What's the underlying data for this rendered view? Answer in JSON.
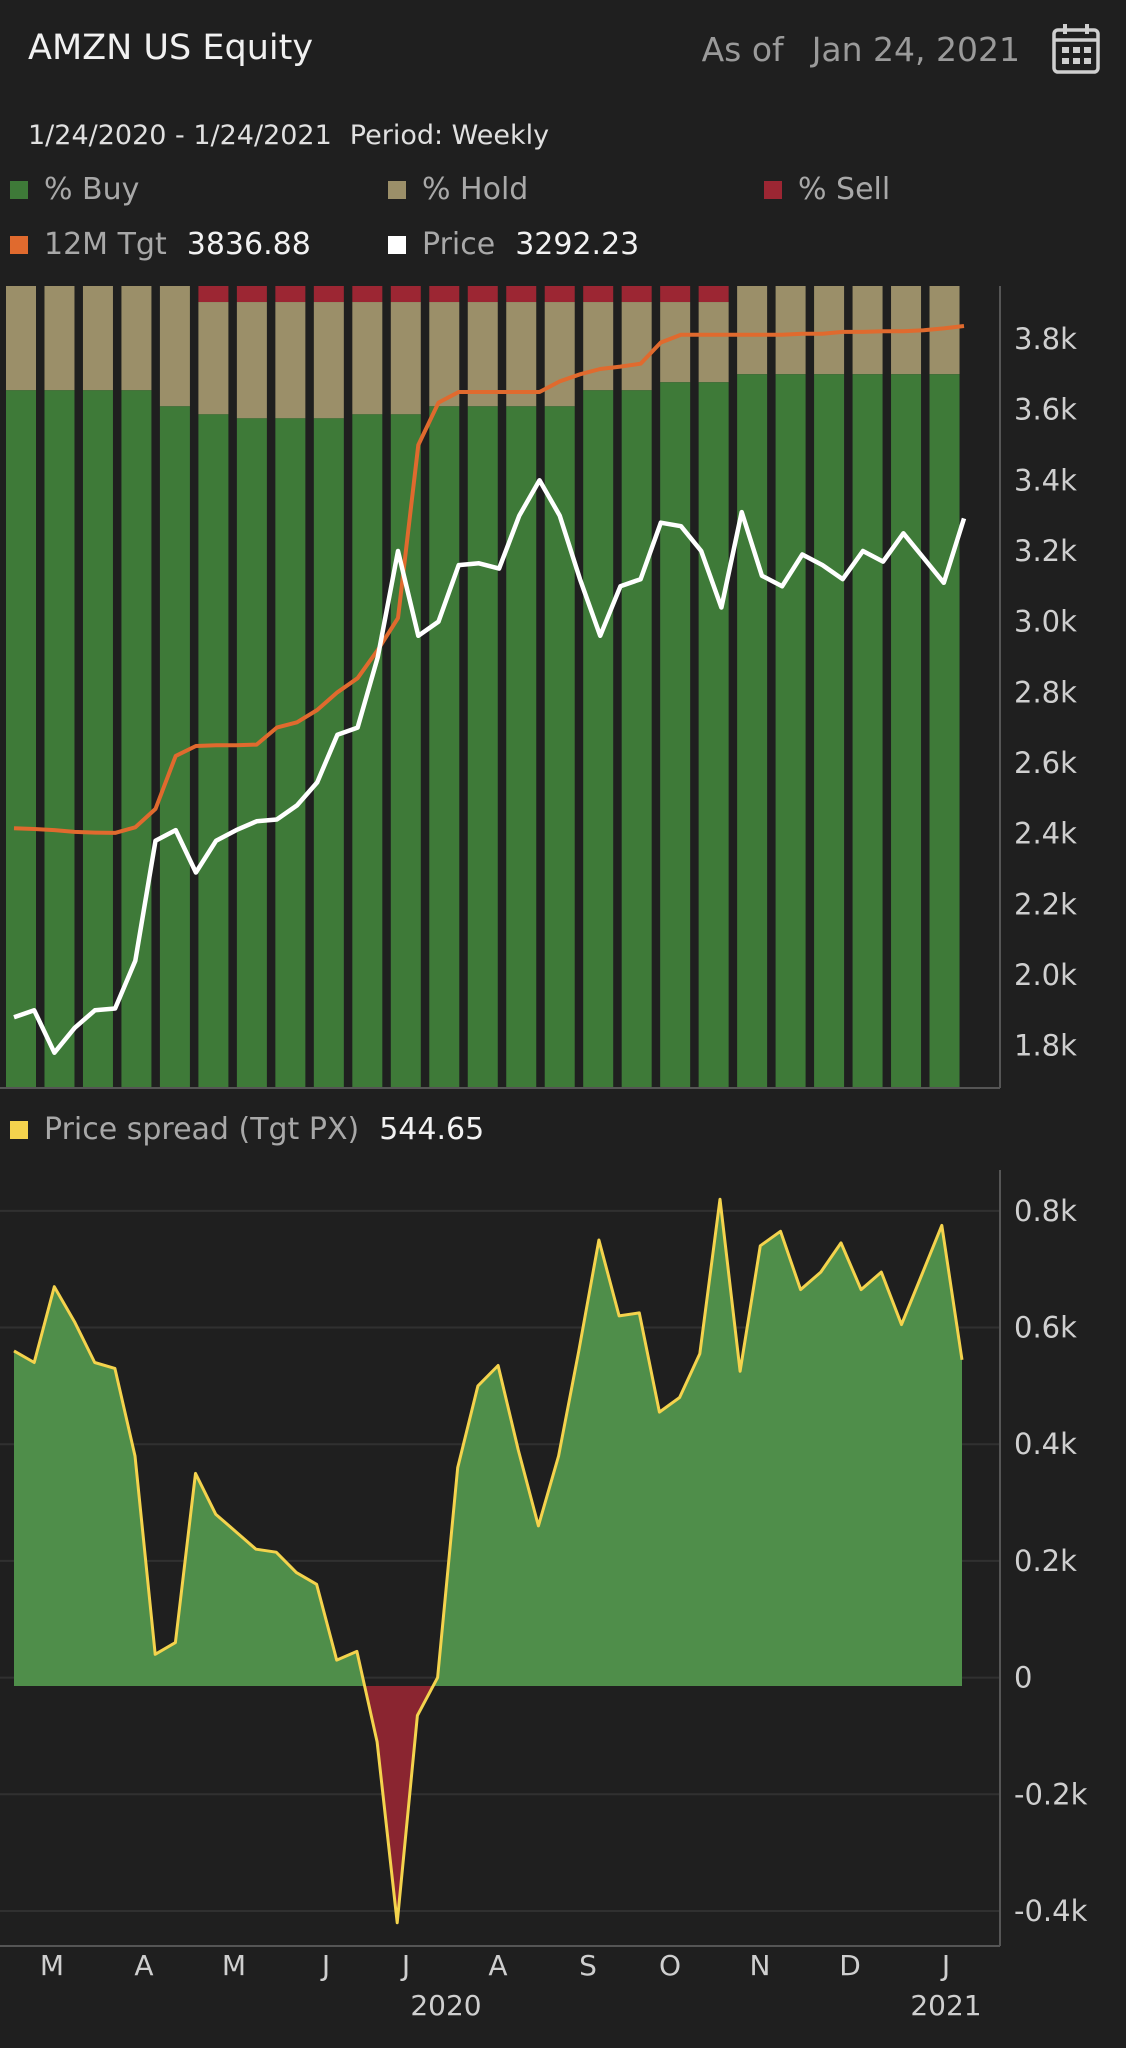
{
  "header": {
    "title": "AMZN US Equity",
    "as_of_label": "As of",
    "as_of_date": "Jan 24, 2021"
  },
  "subheader": {
    "range": "1/24/2020 - 1/24/2021",
    "period": "Period: Weekly"
  },
  "legend": {
    "buy": "% Buy",
    "hold": "% Hold",
    "sell": "% Sell",
    "tgt_label": "12M Tgt",
    "tgt_value": "3836.88",
    "price_label": "Price",
    "price_value": "3292.23",
    "spread_label": "Price spread (Tgt PX)",
    "spread_value": "544.65"
  },
  "colors": {
    "buy": "#3e7a38",
    "hold": "#9b8f69",
    "sell": "#9c2633",
    "tgt": "#e06a2e",
    "price": "#ffffff",
    "spread_pos": "#4f8e4a",
    "spread_neg": "#8a2530",
    "spread_line": "#f4d34d"
  },
  "chart_data": [
    {
      "type": "bar",
      "title": "",
      "bar_stack_percent": {
        "buy": [
          87,
          87,
          87,
          87,
          85,
          84,
          83.5,
          83.5,
          83.5,
          84,
          84,
          85,
          85,
          85,
          85,
          87,
          87,
          88,
          88,
          89,
          89,
          89,
          89,
          89,
          89
        ],
        "hold": [
          13,
          13,
          13,
          13,
          15,
          14,
          14.5,
          14.5,
          14.5,
          14,
          14,
          13,
          13,
          13,
          13,
          11,
          11,
          10,
          10,
          11,
          11,
          11,
          11,
          11,
          11
        ],
        "sell": [
          0,
          0,
          0,
          0,
          0,
          2,
          2,
          2,
          2,
          2,
          2,
          2,
          2,
          2,
          2,
          2,
          2,
          2,
          2,
          0,
          0,
          0,
          0,
          0,
          0
        ]
      },
      "series": [
        {
          "name": "12M Tgt",
          "type": "line",
          "values": [
            2415,
            2413,
            2410,
            2405,
            2403,
            2402,
            2418,
            2470,
            2620,
            2648,
            2650,
            2650,
            2652,
            2700,
            2715,
            2750,
            2800,
            2840,
            2920,
            3010,
            3500,
            3620,
            3650,
            3650,
            3650,
            3650,
            3650,
            3680,
            3700,
            3715,
            3722,
            3730,
            3790,
            3812,
            3812,
            3812,
            3812,
            3812,
            3812,
            3815,
            3815,
            3820,
            3820,
            3822,
            3822,
            3825,
            3830,
            3836.88
          ]
        },
        {
          "name": "Price",
          "type": "line",
          "values": [
            1880,
            1900,
            1780,
            1850,
            1900,
            1905,
            2040,
            2380,
            2410,
            2290,
            2380,
            2410,
            2435,
            2440,
            2480,
            2545,
            2680,
            2700,
            2900,
            3200,
            2960,
            3000,
            3160,
            3165,
            3150,
            3300,
            3400,
            3300,
            3120,
            2960,
            3100,
            3120,
            3280,
            3270,
            3200,
            3040,
            3310,
            3130,
            3100,
            3190,
            3160,
            3120,
            3200,
            3170,
            3250,
            3180,
            3110,
            3292.23
          ]
        }
      ],
      "ylim": [
        1680,
        3950
      ],
      "yticks": [
        "3.8k",
        "3.6k",
        "3.4k",
        "3.2k",
        "3.0k",
        "2.8k",
        "2.6k",
        "2.4k",
        "2.2k",
        "2.0k",
        "1.8k"
      ],
      "ytick_values": [
        3800,
        3600,
        3400,
        3200,
        3000,
        2800,
        2600,
        2400,
        2200,
        2000,
        1800
      ]
    },
    {
      "type": "area",
      "title": "",
      "series": [
        {
          "name": "Price spread (Tgt PX)",
          "values": [
            560,
            540,
            670,
            610,
            540,
            530,
            380,
            40,
            60,
            350,
            280,
            250,
            220,
            215,
            180,
            160,
            30,
            45,
            -110,
            -420,
            -65,
            0,
            360,
            500,
            535,
            390,
            260,
            380,
            560,
            750,
            620,
            625,
            455,
            480,
            555,
            820,
            525,
            740,
            765,
            665,
            695,
            745,
            665,
            695,
            605,
            690,
            775,
            544.65
          ]
        }
      ],
      "ylim": [
        -460,
        870
      ],
      "yticks": [
        "0.8k",
        "0.6k",
        "0.4k",
        "0.2k",
        "0",
        "-0.2k",
        "-0.4k"
      ],
      "ytick_values": [
        800,
        600,
        400,
        200,
        0,
        -200,
        -400
      ]
    }
  ],
  "x_axis": {
    "months": [
      "M",
      "A",
      "M",
      "J",
      "J",
      "A",
      "S",
      "O",
      "N",
      "D",
      "J"
    ],
    "years": [
      "2020",
      "2021"
    ]
  }
}
